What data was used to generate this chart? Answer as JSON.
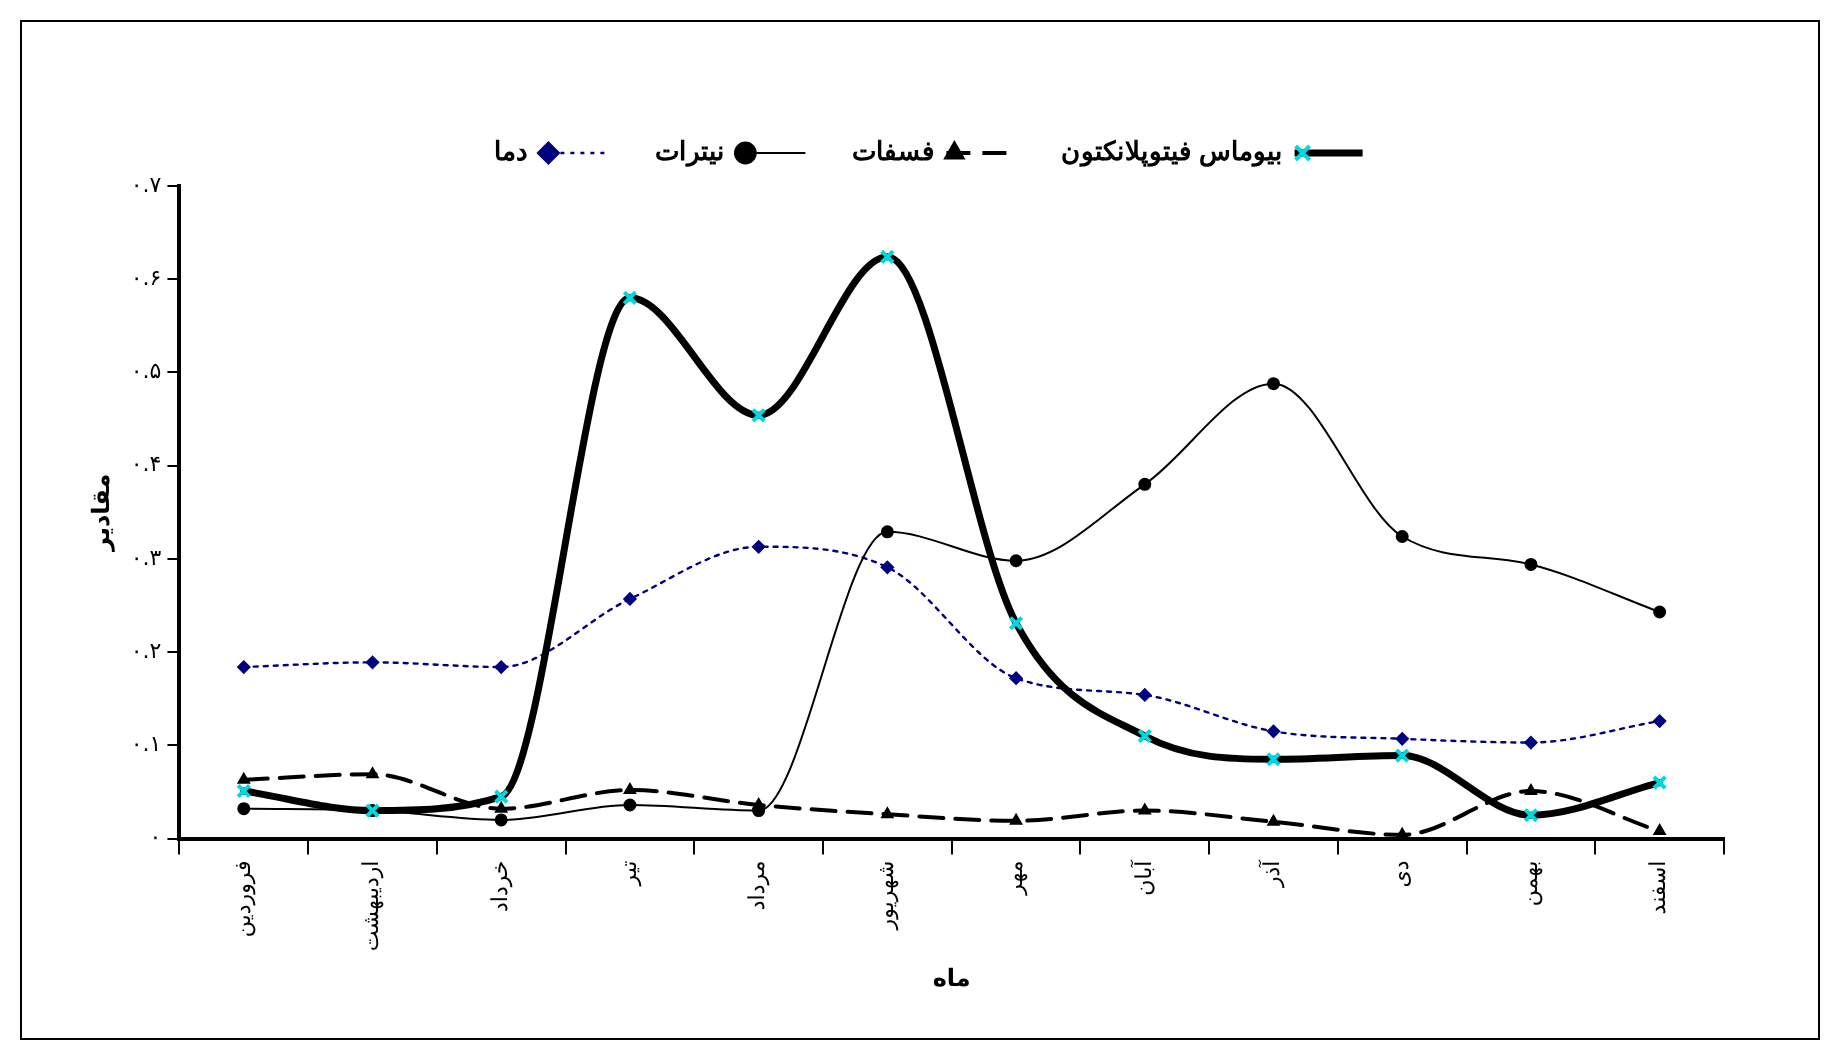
{
  "chart_data": {
    "type": "line",
    "xlabel": "ماه",
    "ylabel": "مقادیر",
    "categories": [
      "فروردین",
      "اردیبهشت",
      "خرداد",
      "تیر",
      "مرداد",
      "شهریور",
      "مهر",
      "آبان",
      "آذر",
      "دی",
      "بهمن",
      "اسفند"
    ],
    "series": [
      {
        "name": "بیوماس فیتوپلانکتون",
        "color": "#000000",
        "marker": "cross",
        "line_style": "solid",
        "values": [
          0.051,
          0.03,
          0.045,
          0.58,
          0.454,
          0.624,
          0.231,
          0.11,
          0.085,
          0.089,
          0.025,
          0.06
        ]
      },
      {
        "name": "فسفات",
        "color": "#000000",
        "marker": "triangle",
        "line_style": "dashed",
        "values": [
          0.063,
          0.069,
          0.032,
          0.052,
          0.036,
          0.026,
          0.019,
          0.03,
          0.018,
          0.004,
          0.051,
          0.008
        ]
      },
      {
        "name": "نیترات",
        "color": "#000000",
        "marker": "circle",
        "line_style": "solid",
        "values": [
          0.032,
          0.03,
          0.02,
          0.036,
          0.03,
          0.329,
          0.298,
          0.38,
          0.488,
          0.324,
          0.294,
          0.243
        ]
      },
      {
        "name": "دما",
        "color": "#000080",
        "marker": "diamond",
        "line_style": "dotted",
        "values": [
          0.184,
          0.189,
          0.184,
          0.257,
          0.313,
          0.291,
          0.172,
          0.154,
          0.115,
          0.107,
          0.103,
          0.126
        ]
      }
    ],
    "ylim": [
      0,
      0.7
    ],
    "yticks": [
      {
        "value": 0,
        "label": "۰"
      },
      {
        "value": 0.1,
        "label": "۰.۱"
      },
      {
        "value": 0.2,
        "label": "۰.۲"
      },
      {
        "value": 0.3,
        "label": "۰.۳"
      },
      {
        "value": 0.4,
        "label": "۰.۴"
      },
      {
        "value": 0.5,
        "label": "۰.۵"
      },
      {
        "value": 0.6,
        "label": "۰.۶"
      },
      {
        "value": 0.7,
        "label": "۰.۷"
      }
    ],
    "grid": false,
    "legend": "top"
  }
}
